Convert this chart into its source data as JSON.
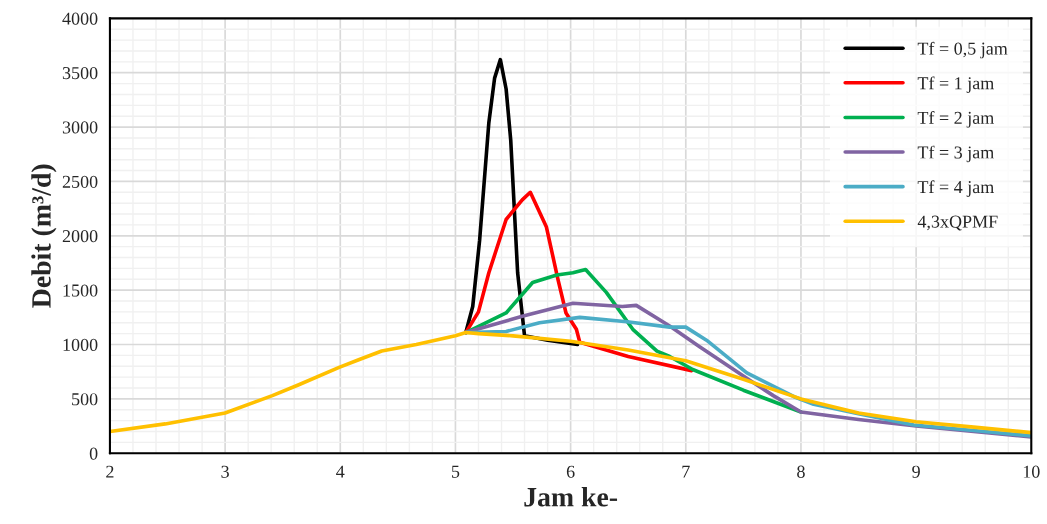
{
  "chart_data": {
    "type": "line",
    "xlabel": "Jam ke-",
    "ylabel": "Debit (m³/d)",
    "xlim": [
      2,
      10
    ],
    "xticks": [
      2,
      3,
      4,
      5,
      6,
      7,
      8,
      9,
      10
    ],
    "ylim": [
      0,
      4000
    ],
    "yticks": [
      0,
      500,
      1000,
      1500,
      2000,
      2500,
      3000,
      3500,
      4000
    ],
    "grid": true,
    "legend": "top right",
    "marker": "none",
    "line_style": "solid",
    "series": [
      {
        "name": "Tf = 0,5 jam",
        "color": "#000000",
        "x": [
          5.09,
          5.15,
          5.21,
          5.29,
          5.34,
          5.39,
          5.44,
          5.48,
          5.54,
          5.6,
          5.8,
          6.06
        ],
        "values": [
          1110,
          1350,
          1960,
          3040,
          3450,
          3620,
          3350,
          2880,
          1660,
          1080,
          1040,
          1000
        ]
      },
      {
        "name": "Tf = 1 jam",
        "color": "#ff0000",
        "x": [
          5.09,
          5.2,
          5.29,
          5.44,
          5.58,
          5.65,
          5.79,
          5.89,
          5.96,
          6.05,
          6.08,
          6.5,
          7.05
        ],
        "values": [
          1110,
          1300,
          1660,
          2150,
          2330,
          2400,
          2080,
          1600,
          1290,
          1140,
          1020,
          890,
          760
        ]
      },
      {
        "name": "Tf = 2 jam",
        "color": "#00b050",
        "x": [
          5.09,
          5.44,
          5.67,
          5.88,
          6.02,
          6.13,
          6.31,
          6.54,
          6.75,
          6.86,
          7.06,
          7.5,
          8.0
        ],
        "values": [
          1110,
          1290,
          1570,
          1640,
          1660,
          1690,
          1480,
          1140,
          940,
          890,
          770,
          580,
          380
        ]
      },
      {
        "name": "Tf = 3 jam",
        "color": "#8064a2",
        "x": [
          5.09,
          5.58,
          6.02,
          6.45,
          6.57,
          6.86,
          7.12,
          7.5,
          7.76,
          8.0,
          8.5,
          9.0,
          9.5,
          10.0
        ],
        "values": [
          1110,
          1260,
          1380,
          1350,
          1360,
          1170,
          980,
          710,
          530,
          380,
          310,
          250,
          200,
          150
        ]
      },
      {
        "name": "Tf = 4 jam",
        "color": "#4bacc6",
        "x": [
          5.09,
          5.44,
          5.73,
          6.08,
          6.49,
          6.86,
          7.0,
          7.18,
          7.53,
          7.94,
          8.11,
          8.52,
          8.98,
          9.5,
          10.0
        ],
        "values": [
          1110,
          1120,
          1200,
          1250,
          1210,
          1160,
          1160,
          1040,
          740,
          520,
          450,
          360,
          260,
          210,
          160
        ]
      },
      {
        "name": "4,3xQPMF",
        "color": "#ffc000",
        "x": [
          2.0,
          2.48,
          3.0,
          3.41,
          3.64,
          3.99,
          4.16,
          4.36,
          4.66,
          5.0,
          5.09,
          5.2,
          5.5,
          6.0,
          6.5,
          7.0,
          7.5,
          8.0,
          8.5,
          9.0,
          9.5,
          10.0
        ],
        "values": [
          200,
          270,
          370,
          530,
          630,
          790,
          860,
          940,
          1000,
          1080,
          1110,
          1100,
          1080,
          1030,
          950,
          850,
          680,
          500,
          370,
          290,
          240,
          190
        ]
      }
    ]
  }
}
